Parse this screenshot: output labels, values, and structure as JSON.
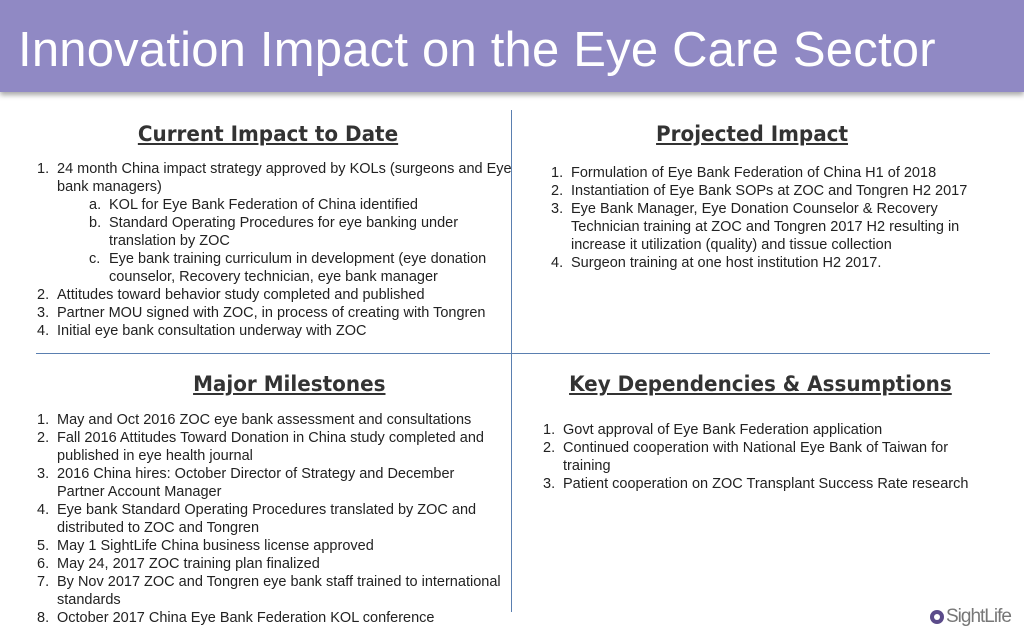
{
  "title": "Innovation Impact on the Eye Care Sector",
  "quadrants": {
    "current": {
      "heading": "Current Impact to Date",
      "items": [
        "24 month China impact strategy approved by KOLs (surgeons and Eye bank managers)",
        "Attitudes toward behavior study completed and published",
        "Partner MOU signed with ZOC, in process of creating with Tongren",
        "Initial eye bank consultation underway with ZOC"
      ],
      "subitems": [
        "KOL for Eye Bank Federation of China identified",
        "Standard Operating Procedures for eye banking under translation by ZOC",
        "Eye bank training curriculum in development (eye donation counselor, Recovery technician, eye bank manager"
      ]
    },
    "projected": {
      "heading": "Projected Impact",
      "items": [
        "Formulation of Eye Bank Federation of China H1 of 2018",
        "Instantiation of Eye Bank SOPs at ZOC and Tongren H2 2017",
        "Eye Bank Manager, Eye Donation Counselor & Recovery Technician training at ZOC and Tongren 2017 H2 resulting in increase it utilization (quality) and tissue collection",
        "Surgeon training at one host institution H2 2017."
      ]
    },
    "milestones": {
      "heading": "Major Milestones",
      "items": [
        "May and Oct 2016 ZOC eye bank assessment and consultations",
        "Fall 2016 Attitudes Toward Donation in China study completed and published in eye health journal",
        "2016 China hires: October Director of Strategy and December Partner Account Manager",
        "Eye bank Standard Operating Procedures translated by ZOC and distributed to ZOC and Tongren",
        "May 1 SightLife China business license approved",
        "May 24, 2017 ZOC training plan finalized",
        "By Nov 2017 ZOC and Tongren eye bank staff trained to international standards",
        "October 2017 China Eye Bank Federation KOL conference"
      ]
    },
    "dependencies": {
      "heading": "Key Dependencies & Assumptions",
      "items": [
        "Govt approval of Eye Bank Federation application",
        "Continued cooperation with National Eye Bank of Taiwan for training",
        "Patient cooperation on ZOC Transplant Success Rate research"
      ]
    }
  },
  "logo": {
    "text": "SightLife",
    "icon": "sightlife-logo-icon"
  },
  "colors": {
    "banner": "#9089c4",
    "divider": "#5a7fb0"
  }
}
